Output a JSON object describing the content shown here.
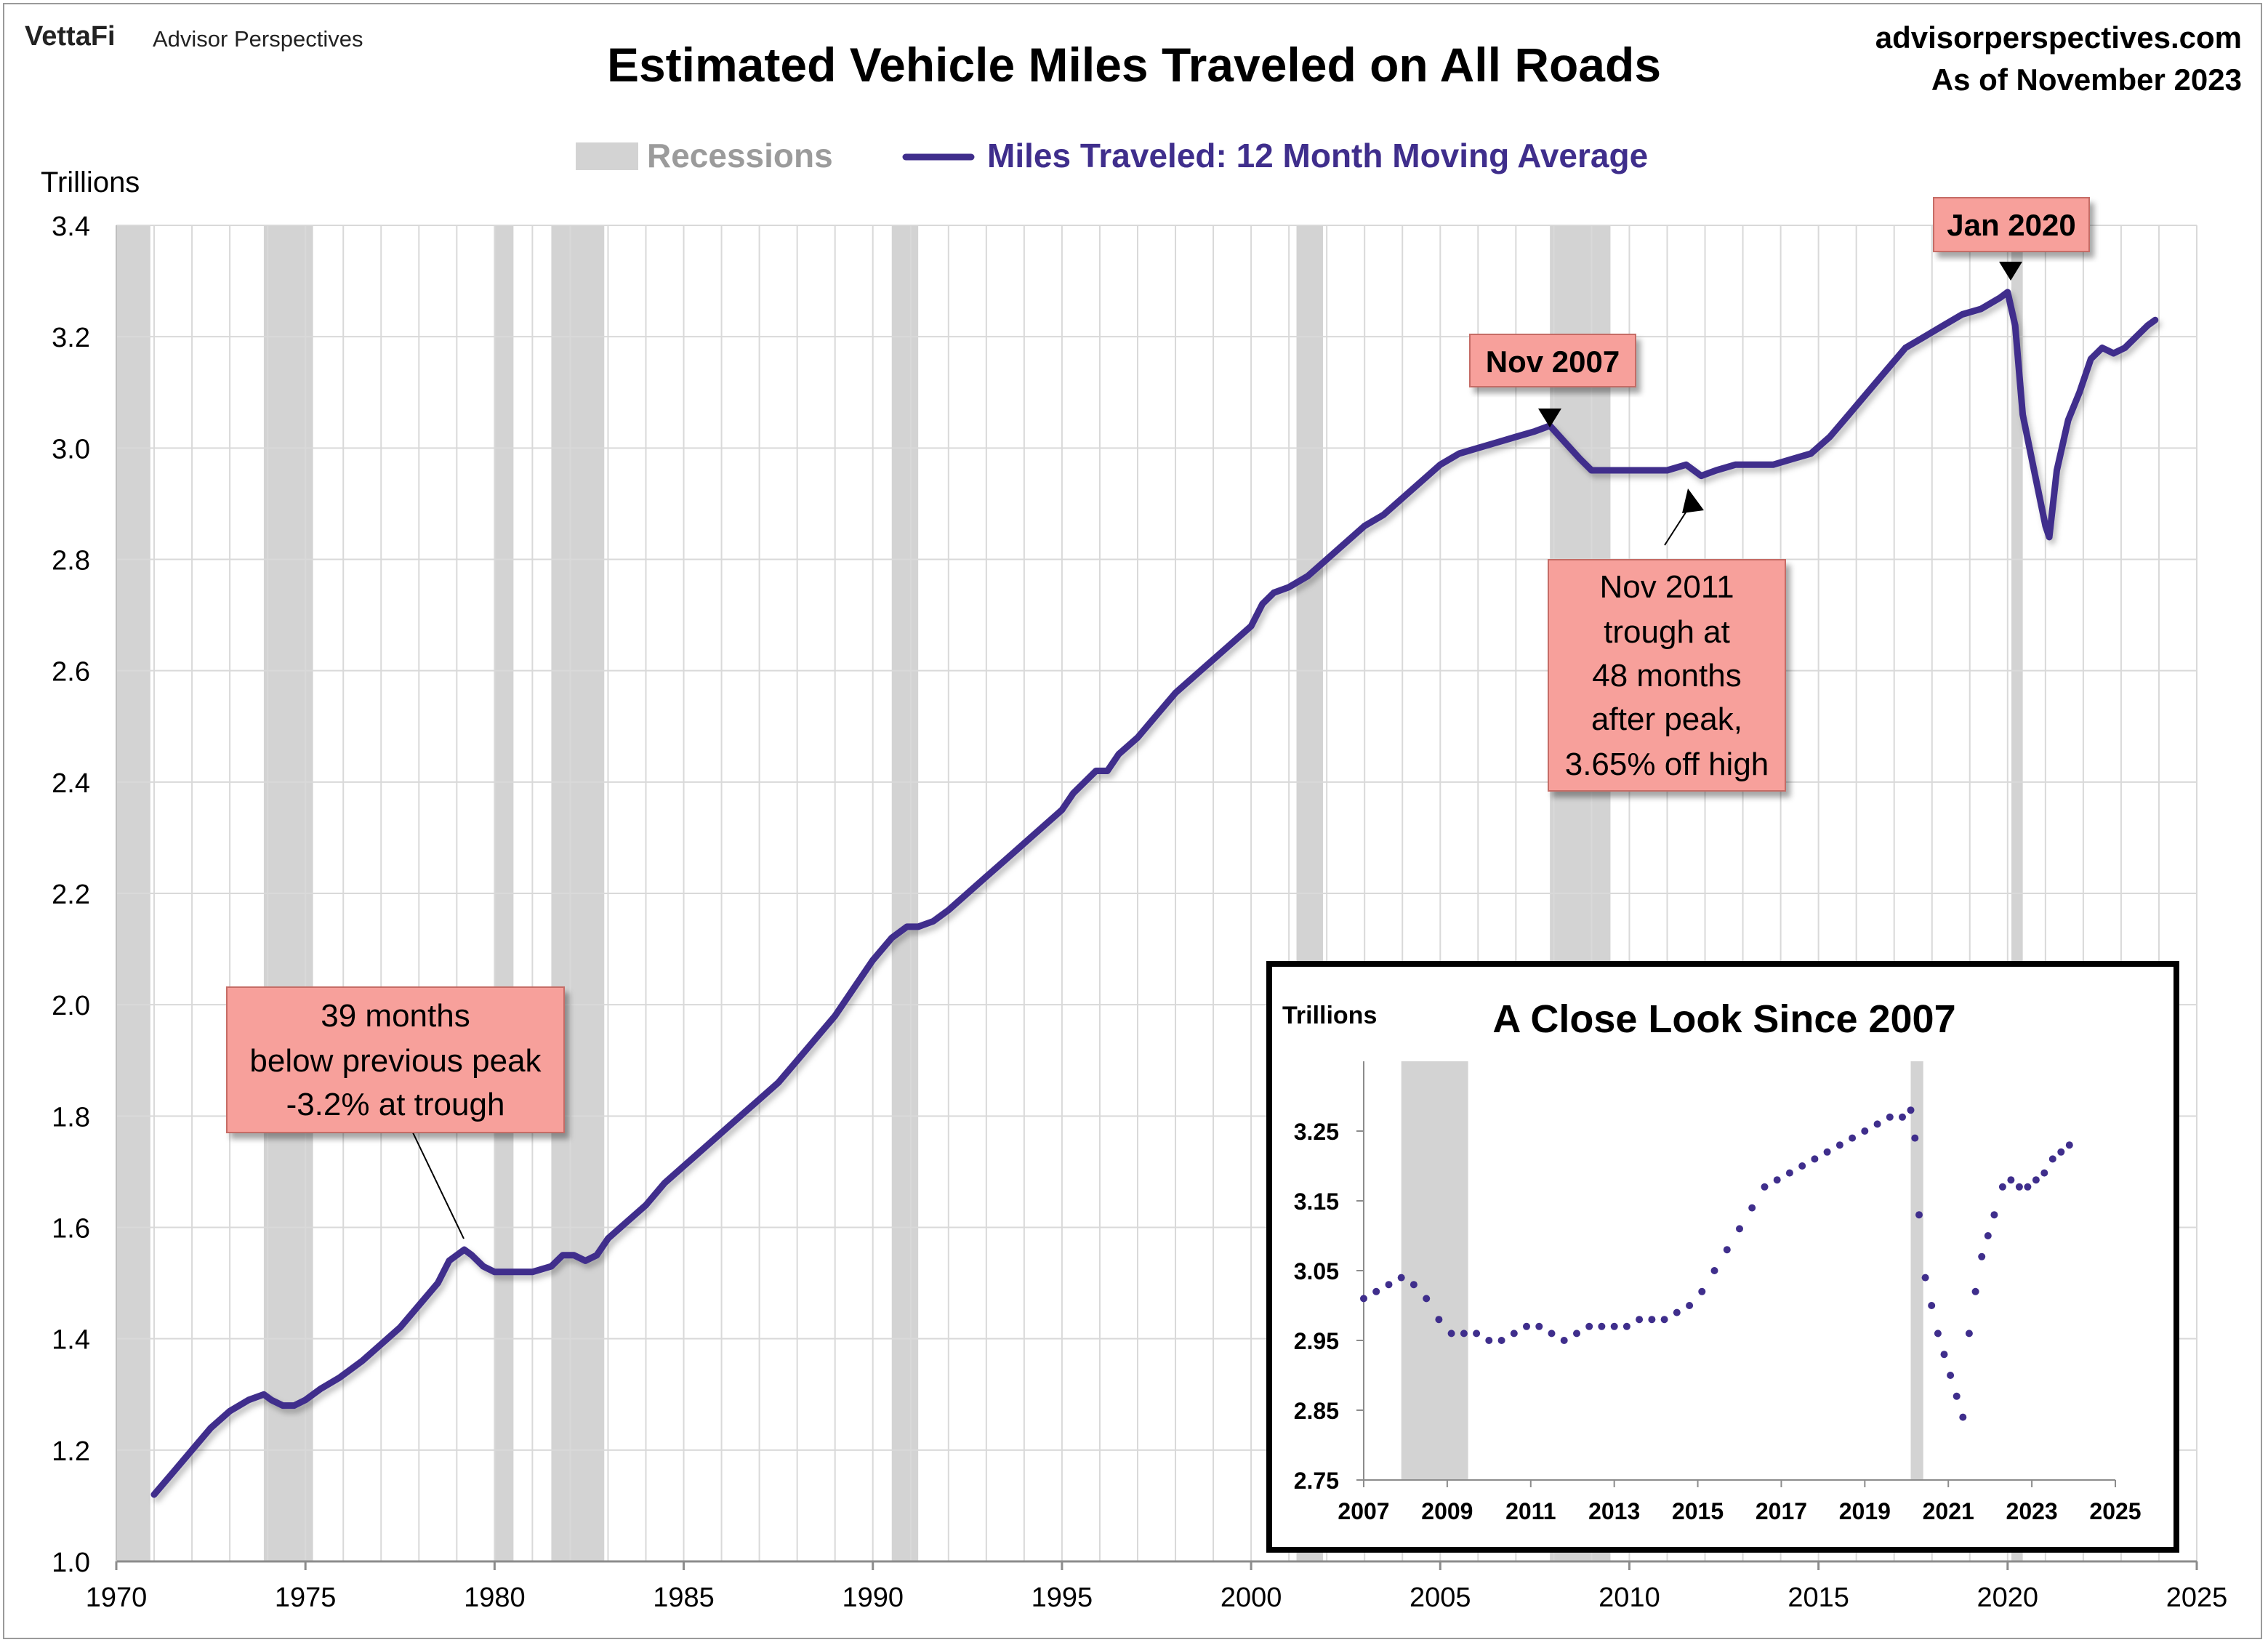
{
  "header": {
    "brand_left": "VettaFi",
    "brand_sub": "Advisor Perspectives",
    "title": "Estimated Vehicle Miles Traveled on All Roads",
    "site": "advisorperspectives.com",
    "as_of": "As of November 2023"
  },
  "legend": {
    "recessions": "Recessions",
    "series": "Miles Traveled: 12 Month Moving Average"
  },
  "colors": {
    "series": "#3f2e8c",
    "recession": "#d3d3d3",
    "callout": "#f7a09b",
    "grid": "#d9d9d9"
  },
  "annotations": {
    "peak_2007": "Nov 2007",
    "peak_2020": "Jan 2020",
    "trough_2011": [
      "Nov 2011",
      "trough at",
      "48 months",
      "after peak,",
      "3.65% off high"
    ],
    "trough_1979": [
      "39 months",
      "below previous peak",
      "-3.2% at trough"
    ]
  },
  "chart_data": [
    {
      "type": "line",
      "title": "Estimated Vehicle Miles Traveled on All Roads",
      "ylabel": "Trillions",
      "xlim": [
        1970,
        2025
      ],
      "ylim": [
        1.0,
        3.4
      ],
      "x_ticks": [
        1970,
        1975,
        1980,
        1985,
        1990,
        1995,
        2000,
        2005,
        2010,
        2015,
        2020,
        2025
      ],
      "y_ticks": [
        "1.0",
        "1.2",
        "1.4",
        "1.6",
        "1.8",
        "2.0",
        "2.2",
        "2.4",
        "2.6",
        "2.8",
        "3.0",
        "3.2",
        "3.4"
      ],
      "grid": true,
      "legend_position": "top-center",
      "recessions": [
        [
          1970.0,
          1970.9
        ],
        [
          1973.9,
          1975.2
        ],
        [
          1980.0,
          1980.5
        ],
        [
          1981.5,
          1982.9
        ],
        [
          1990.5,
          1991.2
        ],
        [
          2001.2,
          2001.9
        ],
        [
          2007.9,
          2009.5
        ],
        [
          2020.1,
          2020.4
        ]
      ],
      "series": [
        {
          "name": "Miles Traveled: 12 Month Moving Average",
          "x": [
            1971.0,
            1971.5,
            1972.0,
            1972.5,
            1973.0,
            1973.5,
            1973.9,
            1974.1,
            1974.4,
            1974.7,
            1975.0,
            1975.4,
            1975.9,
            1976.5,
            1977.0,
            1977.5,
            1978.0,
            1978.5,
            1978.8,
            1979.0,
            1979.2,
            1979.4,
            1979.7,
            1980.0,
            1980.4,
            1981.0,
            1981.5,
            1981.8,
            1982.1,
            1982.4,
            1982.7,
            1983.0,
            1983.5,
            1984.0,
            1984.5,
            1985.0,
            1985.5,
            1986.0,
            1986.5,
            1987.0,
            1987.5,
            1988.0,
            1988.5,
            1989.0,
            1989.5,
            1990.0,
            1990.5,
            1990.9,
            1991.2,
            1991.6,
            1992.0,
            1992.5,
            1993.0,
            1993.5,
            1994.0,
            1994.5,
            1995.0,
            1995.3,
            1995.6,
            1995.9,
            1996.2,
            1996.5,
            1997.0,
            1997.5,
            1998.0,
            1998.5,
            1999.0,
            1999.5,
            2000.0,
            2000.3,
            2000.6,
            2001.0,
            2001.5,
            2002.0,
            2002.5,
            2003.0,
            2003.5,
            2004.0,
            2004.5,
            2005.0,
            2005.5,
            2006.0,
            2006.5,
            2007.0,
            2007.5,
            2007.9,
            2008.3,
            2008.7,
            2009.0,
            2009.5,
            2010.0,
            2010.5,
            2011.0,
            2011.5,
            2011.9,
            2012.3,
            2012.8,
            2013.3,
            2013.8,
            2014.3,
            2014.8,
            2015.3,
            2015.8,
            2016.3,
            2016.8,
            2017.3,
            2017.8,
            2018.3,
            2018.8,
            2019.3,
            2019.8,
            2020.0,
            2020.2,
            2020.4,
            2020.7,
            2021.0,
            2021.1,
            2021.3,
            2021.6,
            2021.9,
            2022.2,
            2022.5,
            2022.8,
            2023.1,
            2023.4,
            2023.7,
            2023.9
          ],
          "values": [
            1.12,
            1.16,
            1.2,
            1.24,
            1.27,
            1.29,
            1.3,
            1.29,
            1.28,
            1.28,
            1.29,
            1.31,
            1.33,
            1.36,
            1.39,
            1.42,
            1.46,
            1.5,
            1.54,
            1.55,
            1.56,
            1.55,
            1.53,
            1.52,
            1.52,
            1.52,
            1.53,
            1.55,
            1.55,
            1.54,
            1.55,
            1.58,
            1.61,
            1.64,
            1.68,
            1.71,
            1.74,
            1.77,
            1.8,
            1.83,
            1.86,
            1.9,
            1.94,
            1.98,
            2.03,
            2.08,
            2.12,
            2.14,
            2.14,
            2.15,
            2.17,
            2.2,
            2.23,
            2.26,
            2.29,
            2.32,
            2.35,
            2.38,
            2.4,
            2.42,
            2.42,
            2.45,
            2.48,
            2.52,
            2.56,
            2.59,
            2.62,
            2.65,
            2.68,
            2.72,
            2.74,
            2.75,
            2.77,
            2.8,
            2.83,
            2.86,
            2.88,
            2.91,
            2.94,
            2.97,
            2.99,
            3.0,
            3.01,
            3.02,
            3.03,
            3.04,
            3.01,
            2.98,
            2.96,
            2.96,
            2.96,
            2.96,
            2.96,
            2.97,
            2.95,
            2.96,
            2.97,
            2.97,
            2.97,
            2.98,
            2.99,
            3.02,
            3.06,
            3.1,
            3.14,
            3.18,
            3.2,
            3.22,
            3.24,
            3.25,
            3.27,
            3.28,
            3.22,
            3.06,
            2.96,
            2.86,
            2.84,
            2.96,
            3.05,
            3.1,
            3.16,
            3.18,
            3.17,
            3.18,
            3.2,
            3.22,
            3.23
          ]
        }
      ]
    },
    {
      "type": "scatter",
      "title": "A Close Look Since 2007",
      "ylabel": "Trillions",
      "xlim": [
        2007,
        2025
      ],
      "ylim": [
        2.75,
        3.35
      ],
      "x_ticks": [
        2007,
        2009,
        2011,
        2013,
        2015,
        2017,
        2019,
        2021,
        2023,
        2025
      ],
      "y_ticks": [
        "2.75",
        "2.85",
        "2.95",
        "3.05",
        "3.15",
        "3.25"
      ],
      "recessions": [
        [
          2007.9,
          2009.5
        ],
        [
          2020.1,
          2020.4
        ]
      ],
      "series": [
        {
          "name": "Miles Traveled: 12 Month Moving Average",
          "x": [
            2007.0,
            2007.3,
            2007.6,
            2007.9,
            2008.2,
            2008.5,
            2008.8,
            2009.1,
            2009.4,
            2009.7,
            2010.0,
            2010.3,
            2010.6,
            2010.9,
            2011.2,
            2011.5,
            2011.8,
            2012.1,
            2012.4,
            2012.7,
            2013.0,
            2013.3,
            2013.6,
            2013.9,
            2014.2,
            2014.5,
            2014.8,
            2015.1,
            2015.4,
            2015.7,
            2016.0,
            2016.3,
            2016.6,
            2016.9,
            2017.2,
            2017.5,
            2017.8,
            2018.1,
            2018.4,
            2018.7,
            2019.0,
            2019.3,
            2019.6,
            2019.9,
            2020.1,
            2020.2,
            2020.3,
            2020.45,
            2020.6,
            2020.75,
            2020.9,
            2021.05,
            2021.2,
            2021.35,
            2021.5,
            2021.65,
            2021.8,
            2021.95,
            2022.1,
            2022.3,
            2022.5,
            2022.7,
            2022.9,
            2023.1,
            2023.3,
            2023.5,
            2023.7,
            2023.9
          ],
          "values": [
            3.01,
            3.02,
            3.03,
            3.04,
            3.03,
            3.01,
            2.98,
            2.96,
            2.96,
            2.96,
            2.95,
            2.95,
            2.96,
            2.97,
            2.97,
            2.96,
            2.95,
            2.96,
            2.97,
            2.97,
            2.97,
            2.97,
            2.98,
            2.98,
            2.98,
            2.99,
            3.0,
            3.02,
            3.05,
            3.08,
            3.11,
            3.14,
            3.17,
            3.18,
            3.19,
            3.2,
            3.21,
            3.22,
            3.23,
            3.24,
            3.25,
            3.26,
            3.27,
            3.27,
            3.28,
            3.24,
            3.13,
            3.04,
            3.0,
            2.96,
            2.93,
            2.9,
            2.87,
            2.84,
            2.96,
            3.02,
            3.07,
            3.1,
            3.13,
            3.17,
            3.18,
            3.17,
            3.17,
            3.18,
            3.19,
            3.21,
            3.22,
            3.23
          ]
        }
      ]
    }
  ]
}
